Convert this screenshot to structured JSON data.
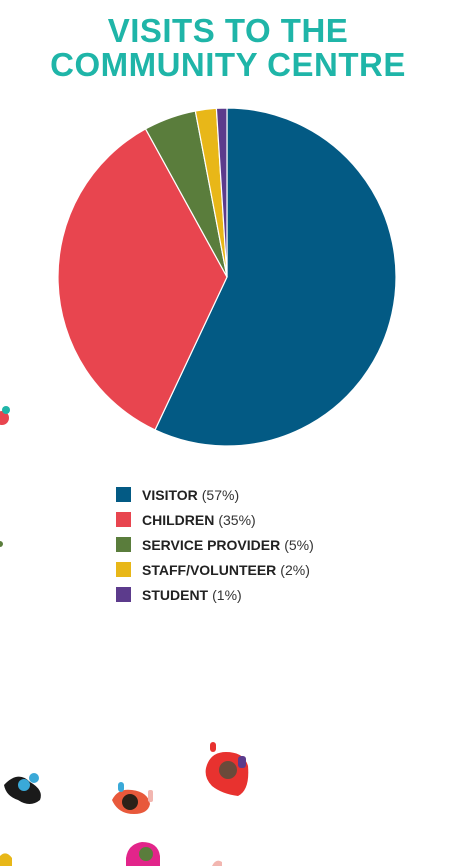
{
  "title": {
    "line1": "VISITS TO THE",
    "line2": "COMMUNITY CENTRE"
  },
  "colors": {
    "title": "#1fb5a8"
  },
  "chart_data": {
    "type": "pie",
    "title": "VISITS TO THE COMMUNITY CENTRE",
    "slices": [
      {
        "label": "VISITOR",
        "value": 57,
        "pct_text": "(57%)",
        "color": "#035a84"
      },
      {
        "label": "CHILDREN",
        "value": 35,
        "pct_text": "(35%)",
        "color": "#e8454f"
      },
      {
        "label": "SERVICE PROVIDER",
        "value": 5,
        "pct_text": "(5%)",
        "color": "#5a7d3c"
      },
      {
        "label": "STAFF/VOLUNTEER",
        "value": 2,
        "pct_text": "(2%)",
        "color": "#e8b718"
      },
      {
        "label": "STUDENT",
        "value": 1,
        "pct_text": "(1%)",
        "color": "#5c3b8c"
      }
    ],
    "legend_position": "bottom-center",
    "start_angle_deg": 0,
    "direction": "clockwise"
  }
}
